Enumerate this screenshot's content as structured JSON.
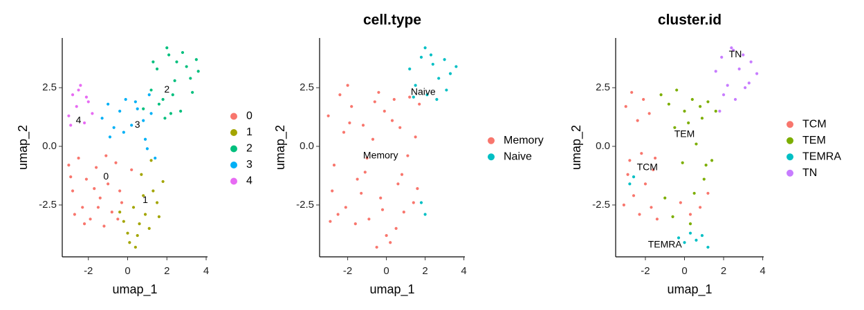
{
  "chart_data": [
    {
      "type": "scatter",
      "xlabel": "umap_1",
      "ylabel": "umap_2",
      "xlim": [
        -3.33,
        4.07
      ],
      "ylim": [
        -4.71,
        4.62
      ],
      "xticks": [
        -2,
        0,
        2,
        4
      ],
      "yticks": [
        -2.5,
        {
          "value": 0,
          "label": "0.0"
        },
        2.5
      ],
      "legend": "right",
      "series": [
        {
          "name": "0",
          "color": "#F8766D",
          "x": [
            -3,
            -2.8,
            -2.5,
            -2.3,
            -2.1,
            -1.9,
            -1.6,
            -1.4,
            -1.2,
            -1,
            -0.8,
            -0.6,
            -0.4,
            -2.7,
            -2.2,
            -1.7,
            -1.1,
            -0.5,
            -2.9,
            -1.5,
            0.2,
            -0.3
          ],
          "y": [
            -0.8,
            -1.9,
            -0.5,
            -2.6,
            -1.4,
            -3.1,
            -0.9,
            -2.2,
            -3.4,
            -1.6,
            -2.8,
            -0.7,
            -1.9,
            -2.9,
            -3.3,
            -1.8,
            -0.4,
            -3.1,
            -1.3,
            -2.6,
            -1.0,
            -2.4
          ]
        },
        {
          "name": "1",
          "color": "#A3A500",
          "x": [
            -0.2,
            0.1,
            0.3,
            0.5,
            0.7,
            0.9,
            1.1,
            1.3,
            1.5,
            1.8,
            0,
            0.4,
            0.8,
            1.2,
            -0.4,
            0.6,
            1.6
          ],
          "y": [
            -3.2,
            -4.1,
            -2.6,
            -3.8,
            -1.2,
            -2.9,
            -3.5,
            -1.9,
            -2.4,
            -1.5,
            -3.7,
            -4.3,
            -2.1,
            -0.6,
            -2.8,
            -3.3,
            -3.0
          ]
        },
        {
          "name": "2",
          "color": "#00BF7D",
          "x": [
            0.8,
            1.2,
            1.5,
            1.8,
            2.1,
            2.4,
            2.7,
            3.0,
            3.3,
            3.6,
            1.3,
            1.9,
            2.3,
            2.8,
            3.2,
            2.0,
            2.5,
            1.6,
            3.5,
            2.2
          ],
          "y": [
            1.6,
            2.4,
            3.3,
            2.0,
            3.9,
            2.8,
            1.5,
            3.4,
            2.3,
            3.2,
            3.6,
            1.2,
            2.2,
            4.0,
            2.9,
            4.2,
            3.6,
            1.8,
            3.7,
            1.4
          ]
        },
        {
          "name": "3",
          "color": "#00B0F6",
          "x": [
            -1.3,
            -1.0,
            -0.7,
            -0.4,
            -0.1,
            0.2,
            0.5,
            0.8,
            1.1,
            -0.9,
            -0.2,
            0.4,
            0.9,
            1.2,
            1.0,
            1.4
          ],
          "y": [
            1.2,
            1.8,
            0.8,
            1.5,
            2.0,
            0.9,
            1.6,
            1.1,
            2.2,
            0.4,
            0.6,
            1.9,
            0.3,
            1.4,
            -0.1,
            -0.5
          ]
        },
        {
          "name": "4",
          "color": "#E76BF3",
          "x": [
            -3.0,
            -2.8,
            -2.6,
            -2.4,
            -2.2,
            -2.0,
            -1.8,
            -2.9,
            -2.5,
            -2.1
          ],
          "y": [
            1.3,
            2.2,
            1.7,
            2.6,
            1.0,
            1.9,
            1.4,
            0.9,
            2.4,
            2.1
          ]
        }
      ],
      "annotations": [
        {
          "text": "0",
          "x": -1.1,
          "y": -1.3
        },
        {
          "text": "1",
          "x": 0.9,
          "y": -2.3
        },
        {
          "text": "2",
          "x": 2.0,
          "y": 2.4
        },
        {
          "text": "3",
          "x": 0.5,
          "y": 0.9
        },
        {
          "text": "4",
          "x": -2.5,
          "y": 1.1
        }
      ]
    },
    {
      "type": "scatter",
      "title": "cell.type",
      "xlabel": "umap_1",
      "ylabel": "umap_2",
      "xlim": [
        -3.45,
        4.05
      ],
      "ylim": [
        -4.71,
        4.62
      ],
      "xticks": [
        -2,
        0,
        2,
        4
      ],
      "yticks": [
        -2.5,
        {
          "value": 0,
          "label": "0.0"
        },
        2.5
      ],
      "legend": "right",
      "series": [
        {
          "name": "Memory",
          "color": "#F8766D",
          "x": [
            -3,
            -2.7,
            -2.4,
            -2.1,
            -1.8,
            -1.5,
            -1.2,
            -0.9,
            -0.6,
            -0.3,
            0,
            0.3,
            0.6,
            0.9,
            1.2,
            1.5,
            -2.8,
            -2.2,
            -1.6,
            -1,
            -0.4,
            0.2,
            0.8,
            1.4,
            -2.5,
            -1.9,
            -1.3,
            -0.7,
            -0.1,
            0.5,
            1.1,
            1.7,
            -2.9,
            -2.0,
            -1.1,
            -0.2,
            0.7,
            1.6,
            -0.5,
            0.4
          ],
          "y": [
            1.3,
            -0.8,
            2.2,
            -2.6,
            1.7,
            -1.4,
            0.9,
            -3.1,
            1.9,
            -2.2,
            -3.8,
            1.1,
            -1.6,
            -2.8,
            2.1,
            0.4,
            -1.9,
            0.6,
            -3.3,
            -0.5,
            2.3,
            -4.1,
            -1.2,
            -2.4,
            -2.9,
            1.0,
            -2.0,
            0.3,
            1.5,
            -3.5,
            -0.4,
            1.8,
            -3.2,
            2.6,
            -1.1,
            -2.7,
            0.8,
            -1.8,
            -4.3,
            2.0
          ]
        },
        {
          "name": "Naive",
          "color": "#00BFC4",
          "x": [
            1.2,
            1.5,
            1.8,
            2.1,
            2.4,
            2.7,
            3.0,
            3.3,
            3.6,
            2.0,
            2.6,
            1.4,
            3.1,
            2.3,
            1.8,
            2.0
          ],
          "y": [
            3.3,
            2.6,
            3.8,
            2.2,
            3.5,
            2.9,
            3.7,
            3.1,
            3.4,
            4.2,
            2.0,
            2.1,
            2.4,
            3.9,
            -2.4,
            -2.9
          ]
        }
      ],
      "annotations": [
        {
          "text": "Naive",
          "x": 1.9,
          "y": 2.3
        },
        {
          "text": "Memory",
          "x": -0.3,
          "y": -0.4
        }
      ]
    },
    {
      "type": "scatter",
      "title": "cluster.id",
      "xlabel": "umap_1",
      "ylabel": "umap_2",
      "xlim": [
        -3.52,
        4.05
      ],
      "ylim": [
        -4.71,
        4.62
      ],
      "xticks": [
        -2,
        0,
        2,
        4
      ],
      "yticks": [
        -2.5,
        {
          "value": 0,
          "label": "0.0"
        },
        2.5
      ],
      "legend": "right",
      "series": [
        {
          "name": "TCM",
          "color": "#F8766D",
          "x": [
            -3,
            -2.7,
            -2.4,
            -2.1,
            -1.8,
            -1.5,
            -2.9,
            -2.6,
            -2.3,
            -2.0,
            -1.7,
            -1.4,
            -0.2,
            0.3,
            0.8,
            1.2,
            -2.8,
            -2.2,
            -1.6,
            -3.1
          ],
          "y": [
            1.7,
            2.3,
            1.1,
            2.0,
            1.4,
            -0.5,
            -1.2,
            -2.1,
            -2.9,
            -1.6,
            -2.6,
            -3.1,
            -2.4,
            -2.9,
            -2.6,
            -2.0,
            -0.6,
            -0.3,
            -1.0,
            -2.5
          ]
        },
        {
          "name": "TEM",
          "color": "#7CAE00",
          "x": [
            -1.2,
            -0.8,
            -0.4,
            0,
            0.4,
            0.8,
            1.2,
            1.6,
            0.2,
            -0.5,
            0.9,
            1.4,
            0.6,
            -0.1,
            1.0,
            -1.0,
            0.5,
            1.1,
            0.3,
            -0.6
          ],
          "y": [
            2.2,
            1.8,
            2.4,
            1.5,
            2.0,
            1.7,
            1.9,
            1.5,
            1.0,
            0.8,
            1.2,
            -0.6,
            0.1,
            -0.7,
            -1.4,
            -2.2,
            -2.0,
            -0.8,
            -3.3,
            -3.0
          ]
        },
        {
          "name": "TEMRA",
          "color": "#00BFC4",
          "x": [
            -0.3,
            0,
            0.3,
            0.6,
            0.9,
            1.2,
            -2.6,
            -2.8
          ],
          "y": [
            -3.9,
            -4.1,
            -3.7,
            -4.0,
            -3.8,
            -4.3,
            -1.3,
            -1.6
          ]
        },
        {
          "name": "TN",
          "color": "#C77CFF",
          "x": [
            1.6,
            1.9,
            2.2,
            2.5,
            2.8,
            3.1,
            3.4,
            3.7,
            2.0,
            2.6,
            3.0,
            2.4,
            1.8,
            3.3
          ],
          "y": [
            3.2,
            3.8,
            2.6,
            4.1,
            3.3,
            2.5,
            3.6,
            3.1,
            2.2,
            2.0,
            3.9,
            4.2,
            1.5,
            2.7
          ]
        }
      ],
      "annotations": [
        {
          "text": "TN",
          "x": 2.6,
          "y": 3.9
        },
        {
          "text": "TEM",
          "x": 0,
          "y": 0.5
        },
        {
          "text": "TCM",
          "x": -1.9,
          "y": -0.9
        },
        {
          "text": "TEMRA",
          "x": -1.0,
          "y": -4.2
        }
      ]
    }
  ]
}
